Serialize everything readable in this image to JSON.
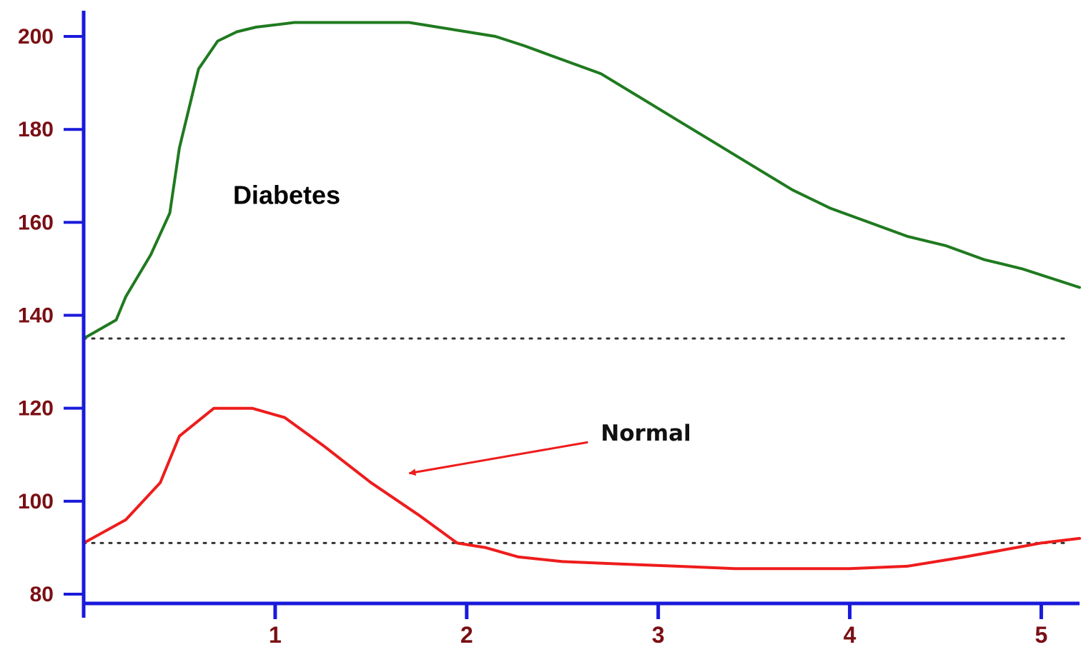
{
  "chart_data": {
    "type": "line",
    "title": "",
    "xlabel": "",
    "ylabel": "",
    "xlim": [
      0,
      5.2
    ],
    "ylim": [
      78,
      204
    ],
    "x_ticks": [
      1,
      2,
      3,
      4,
      5
    ],
    "x_tick_labels": [
      "1",
      "2",
      "3",
      "4",
      "5"
    ],
    "y_ticks": [
      80,
      100,
      120,
      140,
      160,
      180,
      200
    ],
    "y_tick_labels": [
      "80",
      "100",
      "120",
      "140",
      "160",
      "180",
      "200"
    ],
    "grid": false,
    "reference_lines": [
      {
        "y": 135,
        "style": "dotted"
      },
      {
        "y": 91,
        "style": "dotted"
      }
    ],
    "series": [
      {
        "name": "Diabetes",
        "color": "#1f7a1f",
        "x": [
          0,
          0.17,
          0.22,
          0.35,
          0.45,
          0.5,
          0.6,
          0.7,
          0.8,
          0.9,
          1.0,
          1.1,
          1.25,
          1.5,
          1.7,
          1.85,
          2.0,
          2.15,
          2.3,
          2.5,
          2.7,
          2.9,
          3.1,
          3.3,
          3.5,
          3.7,
          3.9,
          4.1,
          4.3,
          4.5,
          4.7,
          4.9,
          5.2
        ],
        "y": [
          135,
          139,
          144,
          153,
          162,
          176,
          193,
          199,
          201,
          202,
          202.5,
          203,
          203,
          203,
          203,
          202,
          201,
          200,
          198,
          195,
          192,
          187,
          182,
          177,
          172,
          167,
          163,
          160,
          157,
          155,
          152,
          150,
          146
        ]
      },
      {
        "name": "Normal",
        "color": "#ee1c1c",
        "x": [
          0,
          0.22,
          0.4,
          0.5,
          0.68,
          0.88,
          1.05,
          1.25,
          1.5,
          1.75,
          1.95,
          2.1,
          2.27,
          2.5,
          2.8,
          3.1,
          3.4,
          3.7,
          4.0,
          4.3,
          4.6,
          5.0,
          5.2
        ],
        "y": [
          91,
          96,
          104,
          114,
          120,
          120,
          118,
          112,
          104,
          97,
          91,
          90,
          88,
          87,
          86.5,
          86,
          85.5,
          85.5,
          85.5,
          86,
          88,
          91,
          92
        ]
      }
    ],
    "annotations": [
      {
        "text": "Diabetes",
        "x": 0.78,
        "y": 164
      },
      {
        "text": "Normal",
        "x": 2.7,
        "y": 113,
        "arrow_to": {
          "x": 1.7,
          "y": 106
        }
      }
    ],
    "axis_color": "#1a1adb"
  }
}
